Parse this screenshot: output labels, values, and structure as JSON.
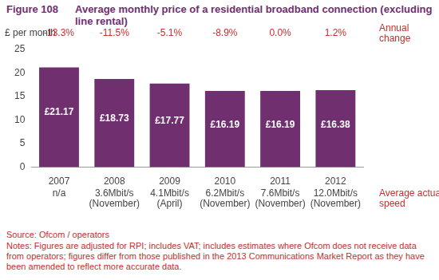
{
  "chart_data": {
    "type": "bar",
    "figure_number": "Figure 108",
    "title": "Average monthly price of a residential broadband connection (excluding line rental)",
    "y_label": "£ per month",
    "categories": [
      "2007",
      "2008",
      "2009",
      "2010",
      "2011",
      "2012"
    ],
    "values": [
      21.17,
      18.73,
      17.77,
      16.19,
      16.19,
      16.38
    ],
    "value_labels": [
      "£21.17",
      "£18.73",
      "£17.77",
      "£16.19",
      "£16.19",
      "£16.38"
    ],
    "data_labels": true,
    "color": "#702f6e",
    "ylim": [
      0,
      25
    ],
    "yticks": [
      0,
      5,
      10,
      15,
      20,
      25
    ],
    "grid": false,
    "annual_change": {
      "label": "Annual change",
      "values": [
        -13.3,
        -11.5,
        -5.1,
        -8.9,
        0.0,
        1.2
      ],
      "value_labels": [
        "-13.3%",
        "-11.5%",
        "-5.1%",
        "-8.9%",
        "0.0%",
        "1.2%"
      ]
    },
    "average_actual_speed": {
      "label": "Average actual speed",
      "labels": [
        [
          "n/a"
        ],
        [
          "3.6Mbit/s",
          "(November)"
        ],
        [
          "4.1Mbit/s",
          "(April)"
        ],
        [
          "6.2Mbit/s",
          "(November)"
        ],
        [
          "7.6Mbit/s",
          "(November)"
        ],
        [
          "12.0Mbit/s",
          "(November)"
        ]
      ]
    },
    "source": "Source: Ofcom / operators",
    "notes": "Notes: Figures are adjusted for RPI; includes VAT; includes estimates where Ofcom does not receive data from operators; figures differ from those published in the 2013 Communications Market Report as they have been amended to reflect more accurate data."
  }
}
